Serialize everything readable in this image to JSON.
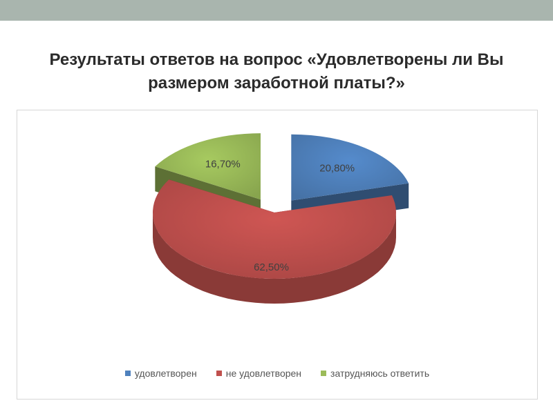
{
  "title_lines": [
    "Результаты ответов на вопрос «Удовлетворены ли Вы",
    "размером заработной платы?»"
  ],
  "chart_data": {
    "type": "pie",
    "three_d": true,
    "exploded": true,
    "categories": [
      "удовлетворен",
      "не удовлетворен",
      "затрудняюсь ответить"
    ],
    "values": [
      20.8,
      62.5,
      16.7
    ],
    "value_labels": [
      "20,80%",
      "62,50%",
      "16,70%"
    ],
    "colors": [
      "#4f81bd",
      "#c0504d",
      "#9bbb59"
    ],
    "legend_position": "bottom"
  }
}
